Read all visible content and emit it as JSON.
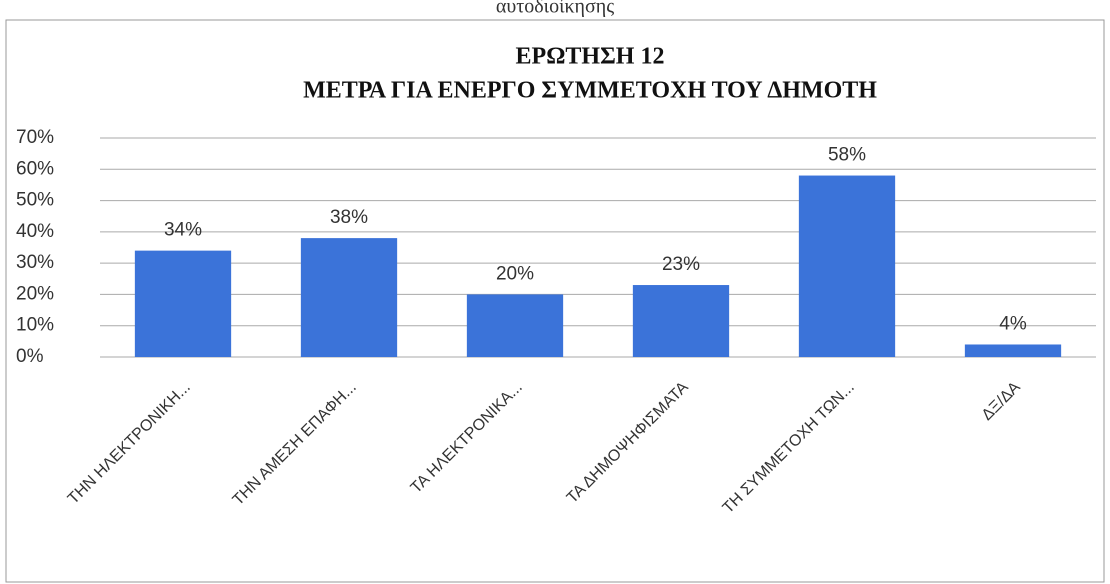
{
  "caption": "αυτοδιοίκησης",
  "chart_data": {
    "type": "bar",
    "title": [
      "ΕΡΩΤΗΣΗ 12",
      "ΜΕΤΡΑ ΓΙΑ ΕΝΕΡΓΟ ΣΥΜΜΕΤΟΧΗ ΤΟΥ ΔΗΜΟΤΗ"
    ],
    "categories": [
      "ΤΗΝ ΗΛΕΚΤΡΟΝΙΚΗ...",
      "ΤΗΝ ΑΜΕΣΗ ΕΠΑΦΗ...",
      "ΤΑ ΗΛΕΚΤΡΟΝΙΚΑ...",
      "ΤΑ ΔΗΜΟΨΗΦΙΣΜΑΤΑ",
      "ΤΗ ΣΥΜΜΕΤΟΧΗ ΤΩΝ...",
      "ΔΞ/ΔΑ"
    ],
    "values": [
      34,
      38,
      20,
      23,
      58,
      4
    ],
    "value_labels": [
      "34%",
      "38%",
      "20%",
      "23%",
      "58%",
      "4%"
    ],
    "color": "#3b73d9",
    "ylim": [
      0,
      70
    ],
    "yticks": [
      {
        "value": 0,
        "label": "0%"
      },
      {
        "value": 10,
        "label": "10%"
      },
      {
        "value": 20,
        "label": "20%"
      },
      {
        "value": 30,
        "label": "30%"
      },
      {
        "value": 40,
        "label": "40%"
      },
      {
        "value": 50,
        "label": "50%"
      },
      {
        "value": 60,
        "label": "60%"
      },
      {
        "value": 70,
        "label": "70%"
      }
    ],
    "grid": true
  }
}
